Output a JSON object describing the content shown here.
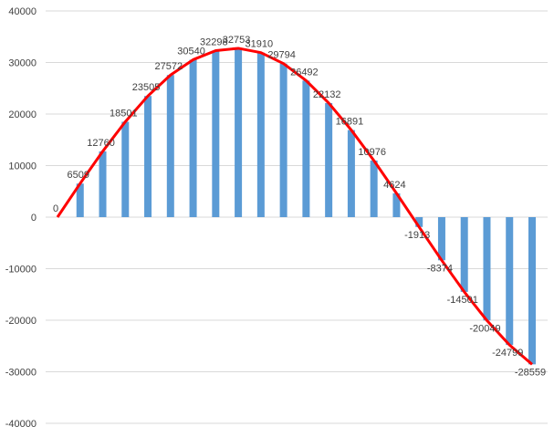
{
  "chart_data": {
    "type": "bar",
    "title": "",
    "xlabel": "",
    "ylabel": "",
    "ylim": [
      -40000,
      40000
    ],
    "yticks": [
      40000,
      30000,
      20000,
      10000,
      0,
      -10000,
      -20000,
      -30000,
      -40000
    ],
    "grid": true,
    "legend": "none",
    "series": [
      {
        "name": "bars",
        "type": "bar",
        "color": "#5b9bd5",
        "values": [
          0,
          6509,
          12760,
          18501,
          23505,
          27572,
          30540,
          32298,
          32753,
          31910,
          29794,
          26492,
          22132,
          16891,
          10976,
          4624,
          -1913,
          -8374,
          -14501,
          -20049,
          -24799,
          -28559
        ]
      },
      {
        "name": "line",
        "type": "line",
        "color": "#ff0000",
        "values": [
          0,
          6509,
          12760,
          18501,
          23505,
          27572,
          30540,
          32298,
          32753,
          31910,
          29794,
          26492,
          22132,
          16891,
          10976,
          4624,
          -1913,
          -8374,
          -14501,
          -20049,
          -24799,
          -28559
        ]
      }
    ],
    "data_labels": [
      "0",
      "6509",
      "12760",
      "18501",
      "23505",
      "27572",
      "30540",
      "32298",
      "32753",
      "31910",
      "29794",
      "26492",
      "22132",
      "16891",
      "10976",
      "4624",
      "-1913",
      "-8374",
      "-14501",
      "-20049",
      "-24799",
      "-28559"
    ]
  }
}
